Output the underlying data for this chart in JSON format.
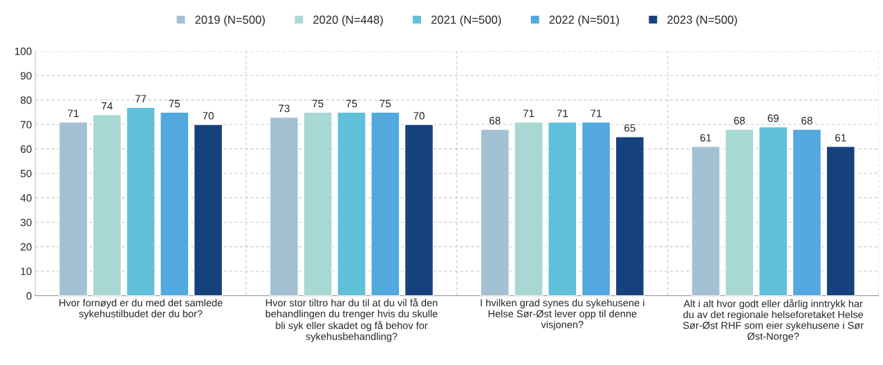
{
  "chart_data": {
    "type": "bar",
    "categories": [
      "Hvor fornøyd er du med det samlede\nsykehustilbudet der du bor?",
      "Hvor stor tiltro har du til at du vil få den\nbehandlingen du trenger hvis du skulle\nbli syk eller skadet og få behov for\nsykehusbehandling?",
      "I hvilken grad synes du sykehusene i\nHelse Sør-Øst lever opp til denne\nvisjonen?",
      "Alt i alt hvor godt eller dårlig inntrykk har\ndu av det regionale helseforetaket Helse\nSør-Øst RHF som eier sykehusene i Sør\nØst-Norge?"
    ],
    "series": [
      {
        "name": "2019 (N=500)",
        "color": "#a3c1d3",
        "values": [
          71,
          73,
          68,
          61
        ]
      },
      {
        "name": "2020 (N=448)",
        "color": "#a8d8d4",
        "values": [
          74,
          75,
          71,
          68
        ]
      },
      {
        "name": "2021 (N=500)",
        "color": "#60c0da",
        "values": [
          77,
          75,
          71,
          69
        ]
      },
      {
        "name": "2022 (N=501)",
        "color": "#52a8df",
        "values": [
          75,
          75,
          71,
          68
        ]
      },
      {
        "name": "2023 (N=500)",
        "color": "#16427c",
        "values": [
          70,
          70,
          65,
          61
        ]
      }
    ],
    "ylim": [
      0,
      100
    ],
    "yticks": [
      0,
      10,
      20,
      30,
      40,
      50,
      60,
      70,
      80,
      90,
      100
    ],
    "grid": true,
    "legend": "top",
    "data_labels": true
  }
}
